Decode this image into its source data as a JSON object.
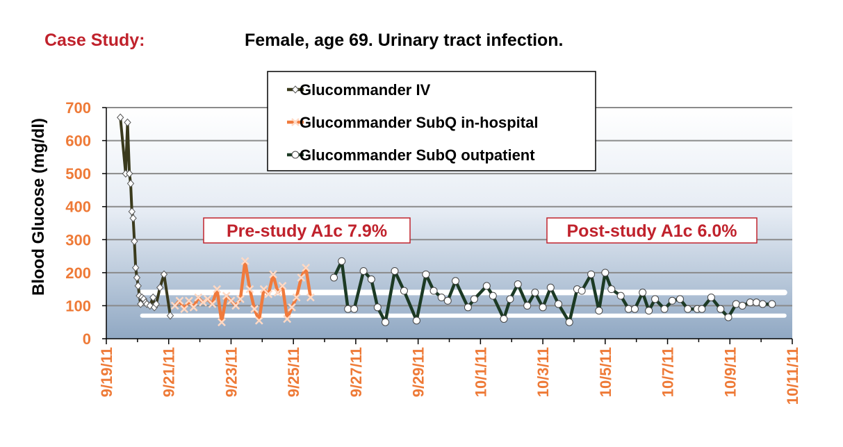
{
  "header": {
    "case_label": "Case Study:",
    "case_desc": "Female, age 69. Urinary tract infection."
  },
  "colors": {
    "iv": "#3a3a1c",
    "subq_in": "#f07a3c",
    "subq_out": "#1c3a24",
    "axis_label": "#ee7a37",
    "accent_red": "#c0222c",
    "target_band": "#ffffff"
  },
  "chart_data": {
    "type": "line",
    "title": "",
    "ylabel": "Blood Glucose  (mg/dl)",
    "xlabel": "",
    "ylim": [
      0,
      700
    ],
    "yticks": [
      0,
      100,
      200,
      300,
      400,
      500,
      600,
      700
    ],
    "xlim": [
      0,
      22
    ],
    "xticks": [
      {
        "x": 0,
        "label": "9/19/11"
      },
      {
        "x": 2,
        "label": "9/21/11"
      },
      {
        "x": 4,
        "label": "9/23/11"
      },
      {
        "x": 6,
        "label": "9/25/11"
      },
      {
        "x": 8,
        "label": "9/27/11"
      },
      {
        "x": 10,
        "label": "9/29/11"
      },
      {
        "x": 12,
        "label": "10/1/11"
      },
      {
        "x": 14,
        "label": "10/3/11"
      },
      {
        "x": 16,
        "label": "10/5/11"
      },
      {
        "x": 18,
        "label": "10/7/11"
      },
      {
        "x": 20,
        "label": "10/9/11"
      },
      {
        "x": 22,
        "label": "10/11/11"
      }
    ],
    "target_range": [
      70,
      140
    ],
    "legend": [
      {
        "name": "Glucommander IV",
        "marker": "diamond"
      },
      {
        "name": "Glucommander SubQ in-hospital",
        "marker": "x"
      },
      {
        "name": "Glucommander SubQ outpatient",
        "marker": "circle"
      }
    ],
    "annotations": [
      {
        "text": "Pre-study A1c 7.9%"
      },
      {
        "text": "Post-study A1c 6.0%"
      }
    ],
    "series": [
      {
        "name": "Glucommander IV",
        "x": [
          0.45,
          0.62,
          0.68,
          0.74,
          0.78,
          0.82,
          0.86,
          0.9,
          0.94,
          0.98,
          1.02,
          1.06,
          1.1,
          1.14,
          1.2,
          1.26,
          1.3,
          1.4,
          1.5,
          1.54,
          1.6,
          1.72,
          1.85,
          2.05
        ],
        "y": [
          670,
          500,
          655,
          500,
          470,
          385,
          365,
          295,
          215,
          185,
          160,
          130,
          105,
          125,
          120,
          110,
          105,
          100,
          125,
          95,
          105,
          155,
          195,
          70
        ]
      },
      {
        "name": "Glucommander SubQ in-hospital",
        "x": [
          2.2,
          2.35,
          2.5,
          2.65,
          2.8,
          2.95,
          3.1,
          3.25,
          3.4,
          3.55,
          3.7,
          3.85,
          4.0,
          4.15,
          4.3,
          4.45,
          4.6,
          4.75,
          4.9,
          5.05,
          5.2,
          5.35,
          5.5,
          5.65,
          5.8,
          5.95,
          6.1,
          6.25,
          6.4,
          6.55
        ],
        "y": [
          100,
          115,
          90,
          115,
          95,
          125,
          110,
          120,
          105,
          150,
          50,
          130,
          115,
          100,
          120,
          235,
          150,
          90,
          55,
          150,
          135,
          195,
          140,
          160,
          60,
          95,
          125,
          185,
          215,
          125
        ]
      },
      {
        "name": "Glucommander SubQ outpatient",
        "x": [
          7.3,
          7.55,
          7.75,
          7.95,
          8.25,
          8.5,
          8.7,
          8.95,
          9.25,
          9.55,
          9.95,
          10.25,
          10.5,
          10.75,
          10.95,
          11.2,
          11.6,
          11.8,
          12.2,
          12.4,
          12.75,
          12.95,
          13.2,
          13.5,
          13.75,
          14.0,
          14.25,
          14.5,
          14.85,
          15.1,
          15.25,
          15.55,
          15.8,
          16.0,
          16.2,
          16.5,
          16.75,
          16.95,
          17.2,
          17.4,
          17.6,
          17.9,
          18.15,
          18.4,
          18.65,
          18.95,
          19.1,
          19.4,
          19.7,
          19.95,
          20.2,
          20.4,
          20.65,
          20.85,
          21.05,
          21.35
        ],
        "y": [
          185,
          235,
          90,
          90,
          205,
          180,
          95,
          50,
          205,
          145,
          55,
          195,
          145,
          125,
          115,
          175,
          95,
          120,
          160,
          130,
          60,
          120,
          165,
          100,
          140,
          95,
          155,
          105,
          50,
          150,
          145,
          195,
          85,
          200,
          150,
          130,
          90,
          90,
          140,
          85,
          120,
          90,
          115,
          120,
          90,
          90,
          90,
          125,
          90,
          65,
          105,
          100,
          110,
          110,
          105,
          105
        ]
      }
    ]
  }
}
